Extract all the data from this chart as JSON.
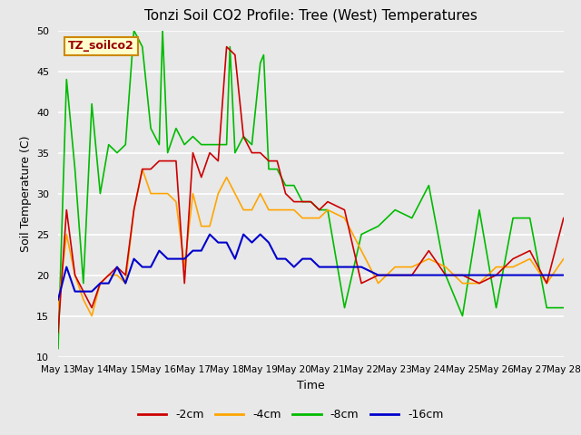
{
  "title": "Tonzi Soil CO2 Profile: Tree (West) Temperatures",
  "xlabel": "Time",
  "ylabel": "Soil Temperature (C)",
  "ylim": [
    10,
    50
  ],
  "xlim": [
    0,
    15
  ],
  "background_color": "#e8e8e8",
  "plot_bg_color": "#e8e8e8",
  "legend_label": "TZ_soilco2",
  "series_labels": [
    "-2cm",
    "-4cm",
    "-8cm",
    "-16cm"
  ],
  "series_colors": [
    "#cc0000",
    "#ffa500",
    "#00bb00",
    "#0000cc"
  ],
  "x_tick_labels": [
    "May 13",
    "May 14",
    "May 15",
    "May 16",
    "May 17",
    "May 18",
    "May 19",
    "May 20",
    "May 21",
    "May 22",
    "May 23",
    "May 24",
    "May 25",
    "May 26",
    "May 27",
    "May 28"
  ],
  "x_2cm": [
    0,
    0.25,
    0.5,
    0.75,
    1,
    1.25,
    1.5,
    1.75,
    2,
    2.25,
    2.5,
    2.75,
    3,
    3.25,
    3.5,
    3.75,
    4,
    4.25,
    4.5,
    4.75,
    5,
    5.25,
    5.5,
    5.75,
    6,
    6.25,
    6.5,
    6.75,
    7,
    7.25,
    7.5,
    7.75,
    8,
    8.5,
    9,
    9.5,
    10,
    10.5,
    11,
    11.5,
    12,
    12.5,
    13,
    13.5,
    14,
    14.5,
    15
  ],
  "y_2cm": [
    13,
    28,
    20,
    18,
    16,
    19,
    20,
    21,
    20,
    28,
    33,
    33,
    34,
    34,
    34,
    19,
    35,
    32,
    35,
    34,
    48,
    47,
    37,
    35,
    35,
    34,
    34,
    30,
    29,
    29,
    29,
    28,
    29,
    28,
    19,
    20,
    20,
    20,
    23,
    20,
    20,
    19,
    20,
    22,
    23,
    19,
    27
  ],
  "x_4cm": [
    0,
    0.25,
    0.5,
    0.75,
    1,
    1.25,
    1.5,
    1.75,
    2,
    2.25,
    2.5,
    2.75,
    3,
    3.25,
    3.5,
    3.75,
    4,
    4.25,
    4.5,
    4.75,
    5,
    5.25,
    5.5,
    5.75,
    6,
    6.25,
    6.5,
    6.75,
    7,
    7.25,
    7.5,
    7.75,
    8,
    8.5,
    9,
    9.5,
    10,
    10.5,
    11,
    11.5,
    12,
    12.5,
    13,
    13.5,
    14,
    14.5,
    15
  ],
  "y_4cm": [
    16,
    25,
    20,
    17,
    15,
    19,
    20,
    20,
    19,
    28,
    33,
    30,
    30,
    30,
    29,
    21,
    30,
    26,
    26,
    30,
    32,
    30,
    28,
    28,
    30,
    28,
    28,
    28,
    28,
    27,
    27,
    27,
    28,
    27,
    23,
    19,
    21,
    21,
    22,
    21,
    19,
    19,
    21,
    21,
    22,
    19,
    22
  ],
  "x_8cm": [
    0,
    0.25,
    0.5,
    0.75,
    1,
    1.25,
    1.5,
    1.75,
    2,
    2.25,
    2.5,
    2.75,
    3,
    3.1,
    3.25,
    3.5,
    3.75,
    4,
    4.25,
    4.5,
    4.75,
    5,
    5.1,
    5.25,
    5.5,
    5.75,
    6,
    6.1,
    6.25,
    6.5,
    6.75,
    7,
    7.25,
    7.5,
    7.75,
    8,
    8.5,
    9,
    9.5,
    10,
    10.5,
    11,
    11.5,
    12,
    12.5,
    13,
    13.5,
    14,
    14.5,
    15
  ],
  "y_8cm": [
    11,
    44,
    33,
    19,
    41,
    30,
    36,
    35,
    36,
    50,
    48,
    38,
    36,
    50,
    35,
    38,
    36,
    37,
    36,
    36,
    36,
    36,
    48,
    35,
    37,
    36,
    46,
    47,
    33,
    33,
    31,
    31,
    29,
    29,
    28,
    28,
    16,
    25,
    26,
    28,
    27,
    31,
    20,
    15,
    28,
    16,
    27,
    27,
    16,
    16
  ],
  "x_16cm": [
    0,
    0.25,
    0.5,
    0.75,
    1,
    1.25,
    1.5,
    1.75,
    2,
    2.25,
    2.5,
    2.75,
    3,
    3.25,
    3.5,
    3.75,
    4,
    4.25,
    4.5,
    4.75,
    5,
    5.25,
    5.5,
    5.75,
    6,
    6.25,
    6.5,
    6.75,
    7,
    7.25,
    7.5,
    7.75,
    8,
    8.5,
    9,
    9.5,
    10,
    10.5,
    11,
    11.5,
    12,
    12.5,
    13,
    13.5,
    14,
    14.5,
    15
  ],
  "y_16cm": [
    17,
    21,
    18,
    18,
    18,
    19,
    19,
    21,
    19,
    22,
    21,
    21,
    23,
    22,
    22,
    22,
    23,
    23,
    25,
    24,
    24,
    22,
    25,
    24,
    25,
    24,
    22,
    22,
    21,
    22,
    22,
    21,
    21,
    21,
    21,
    20,
    20,
    20,
    20,
    20,
    20,
    20,
    20,
    20,
    20,
    20,
    20
  ]
}
